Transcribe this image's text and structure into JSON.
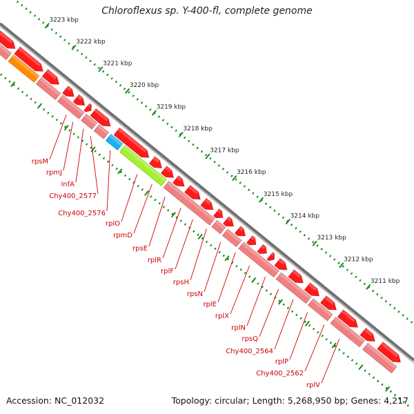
{
  "title": "Chloroflexus sp. Y-400-fl, complete genome",
  "footer": {
    "accession": "Accession: NC_012032",
    "summary": "Topology: circular; Length: 5,268,950 bp; Genes: 4,217"
  },
  "colors": {
    "forward_gene": "#ff1a1a",
    "reverse_gene": "#f08080",
    "rrna_orange": "#ff8c00",
    "rrna_blue": "#1ab2f0",
    "rrna_green": "#a6f032",
    "backbone": "#707070",
    "ticks": "#1a8a1a",
    "label": "#cc0000"
  },
  "ruler_labels": [
    "3223 kbp",
    "3222 kbp",
    "3221 kbp",
    "3220 kbp",
    "3219 kbp",
    "3218 kbp",
    "3217 kbp",
    "3216 kbp",
    "3215 kbp",
    "3214 kbp",
    "3213 kbp",
    "3212 kbp",
    "3211 kbp"
  ],
  "gene_labels": [
    "rpsM",
    "rpmJ",
    "infA",
    "Chy400_2577",
    "Chy400_2576",
    "rplO",
    "rpmD",
    "rpsE",
    "rplR",
    "rplF",
    "rpsH",
    "rpsN",
    "rplE",
    "rplX",
    "rplN",
    "rpsQ",
    "Chy400_2564",
    "rplP",
    "Chy400_2562",
    "rplV"
  ]
}
